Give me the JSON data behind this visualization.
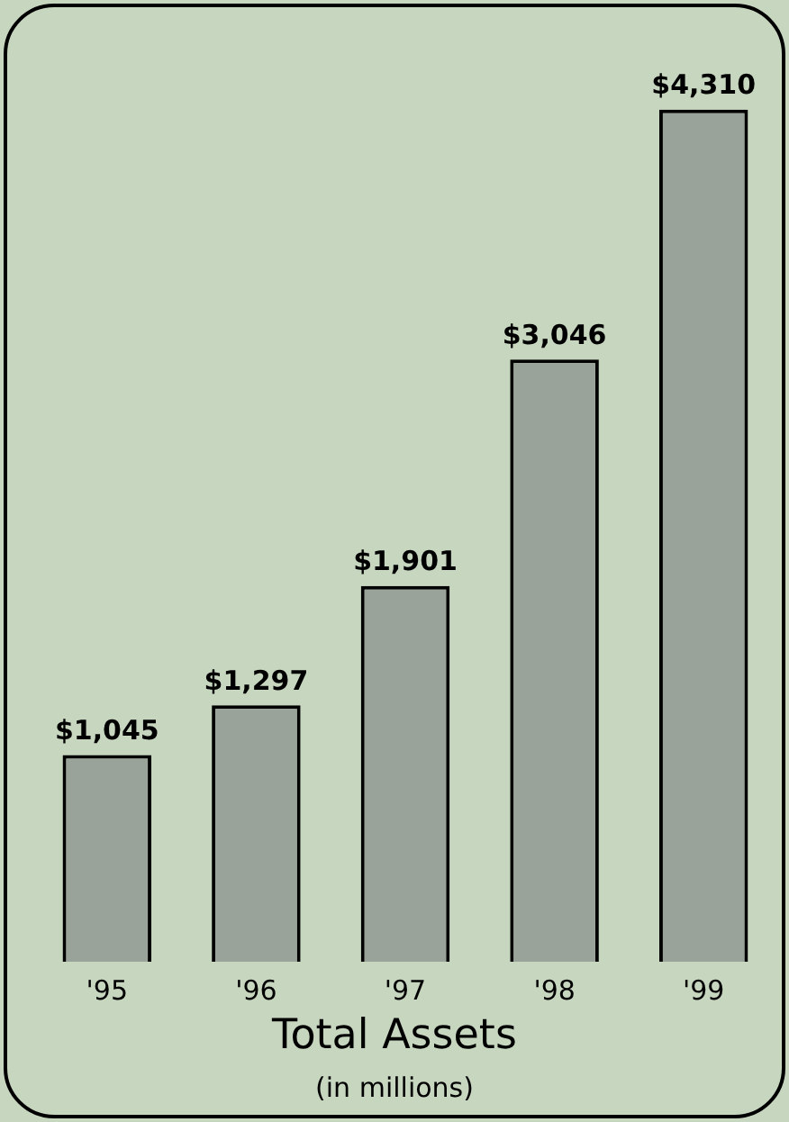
{
  "chart_data": {
    "type": "bar",
    "title": "Total Assets",
    "subtitle": "(in millions)",
    "categories": [
      "'95",
      "'96",
      "'97",
      "'98",
      "'99"
    ],
    "values": [
      1045,
      1297,
      1901,
      3046,
      4310
    ],
    "value_labels": [
      "$1,045",
      "$1,297",
      "$1,901",
      "$3,046",
      "$4,310"
    ],
    "color": "#9aa39a",
    "tick_labels": "x",
    "grid": false,
    "legend": false
  }
}
